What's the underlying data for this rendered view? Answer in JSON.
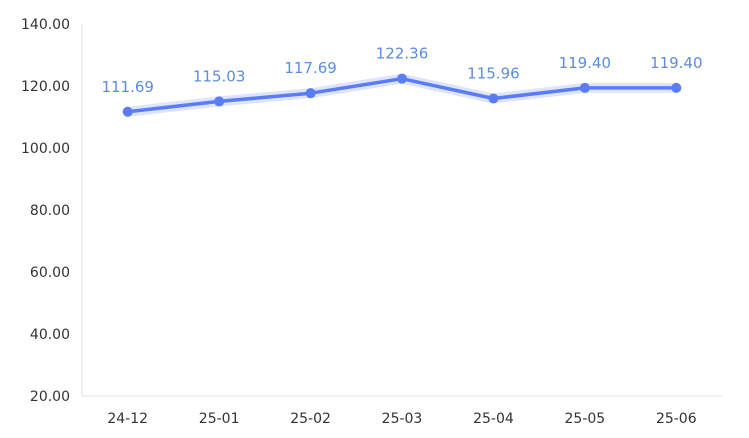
{
  "chart_data": {
    "type": "line",
    "categories": [
      "24-12",
      "25-01",
      "25-02",
      "25-03",
      "25-04",
      "25-05",
      "25-06"
    ],
    "series": [
      {
        "values": [
          111.69,
          115.03,
          117.69,
          122.36,
          115.96,
          119.4,
          119.4
        ]
      }
    ],
    "data_labels": [
      "111.69",
      "115.03",
      "117.69",
      "122.36",
      "115.96",
      "119.40",
      "119.40"
    ],
    "y_ticks": [
      "20.00",
      "40.00",
      "60.00",
      "80.00",
      "100.00",
      "120.00",
      "140.00"
    ],
    "ylim": [
      20,
      140
    ],
    "grid": false,
    "colors": {
      "line": "#5b7cf7",
      "label": "#5b8de0",
      "glow": "#c3cdfb",
      "axis": "#e3e3e3"
    }
  }
}
